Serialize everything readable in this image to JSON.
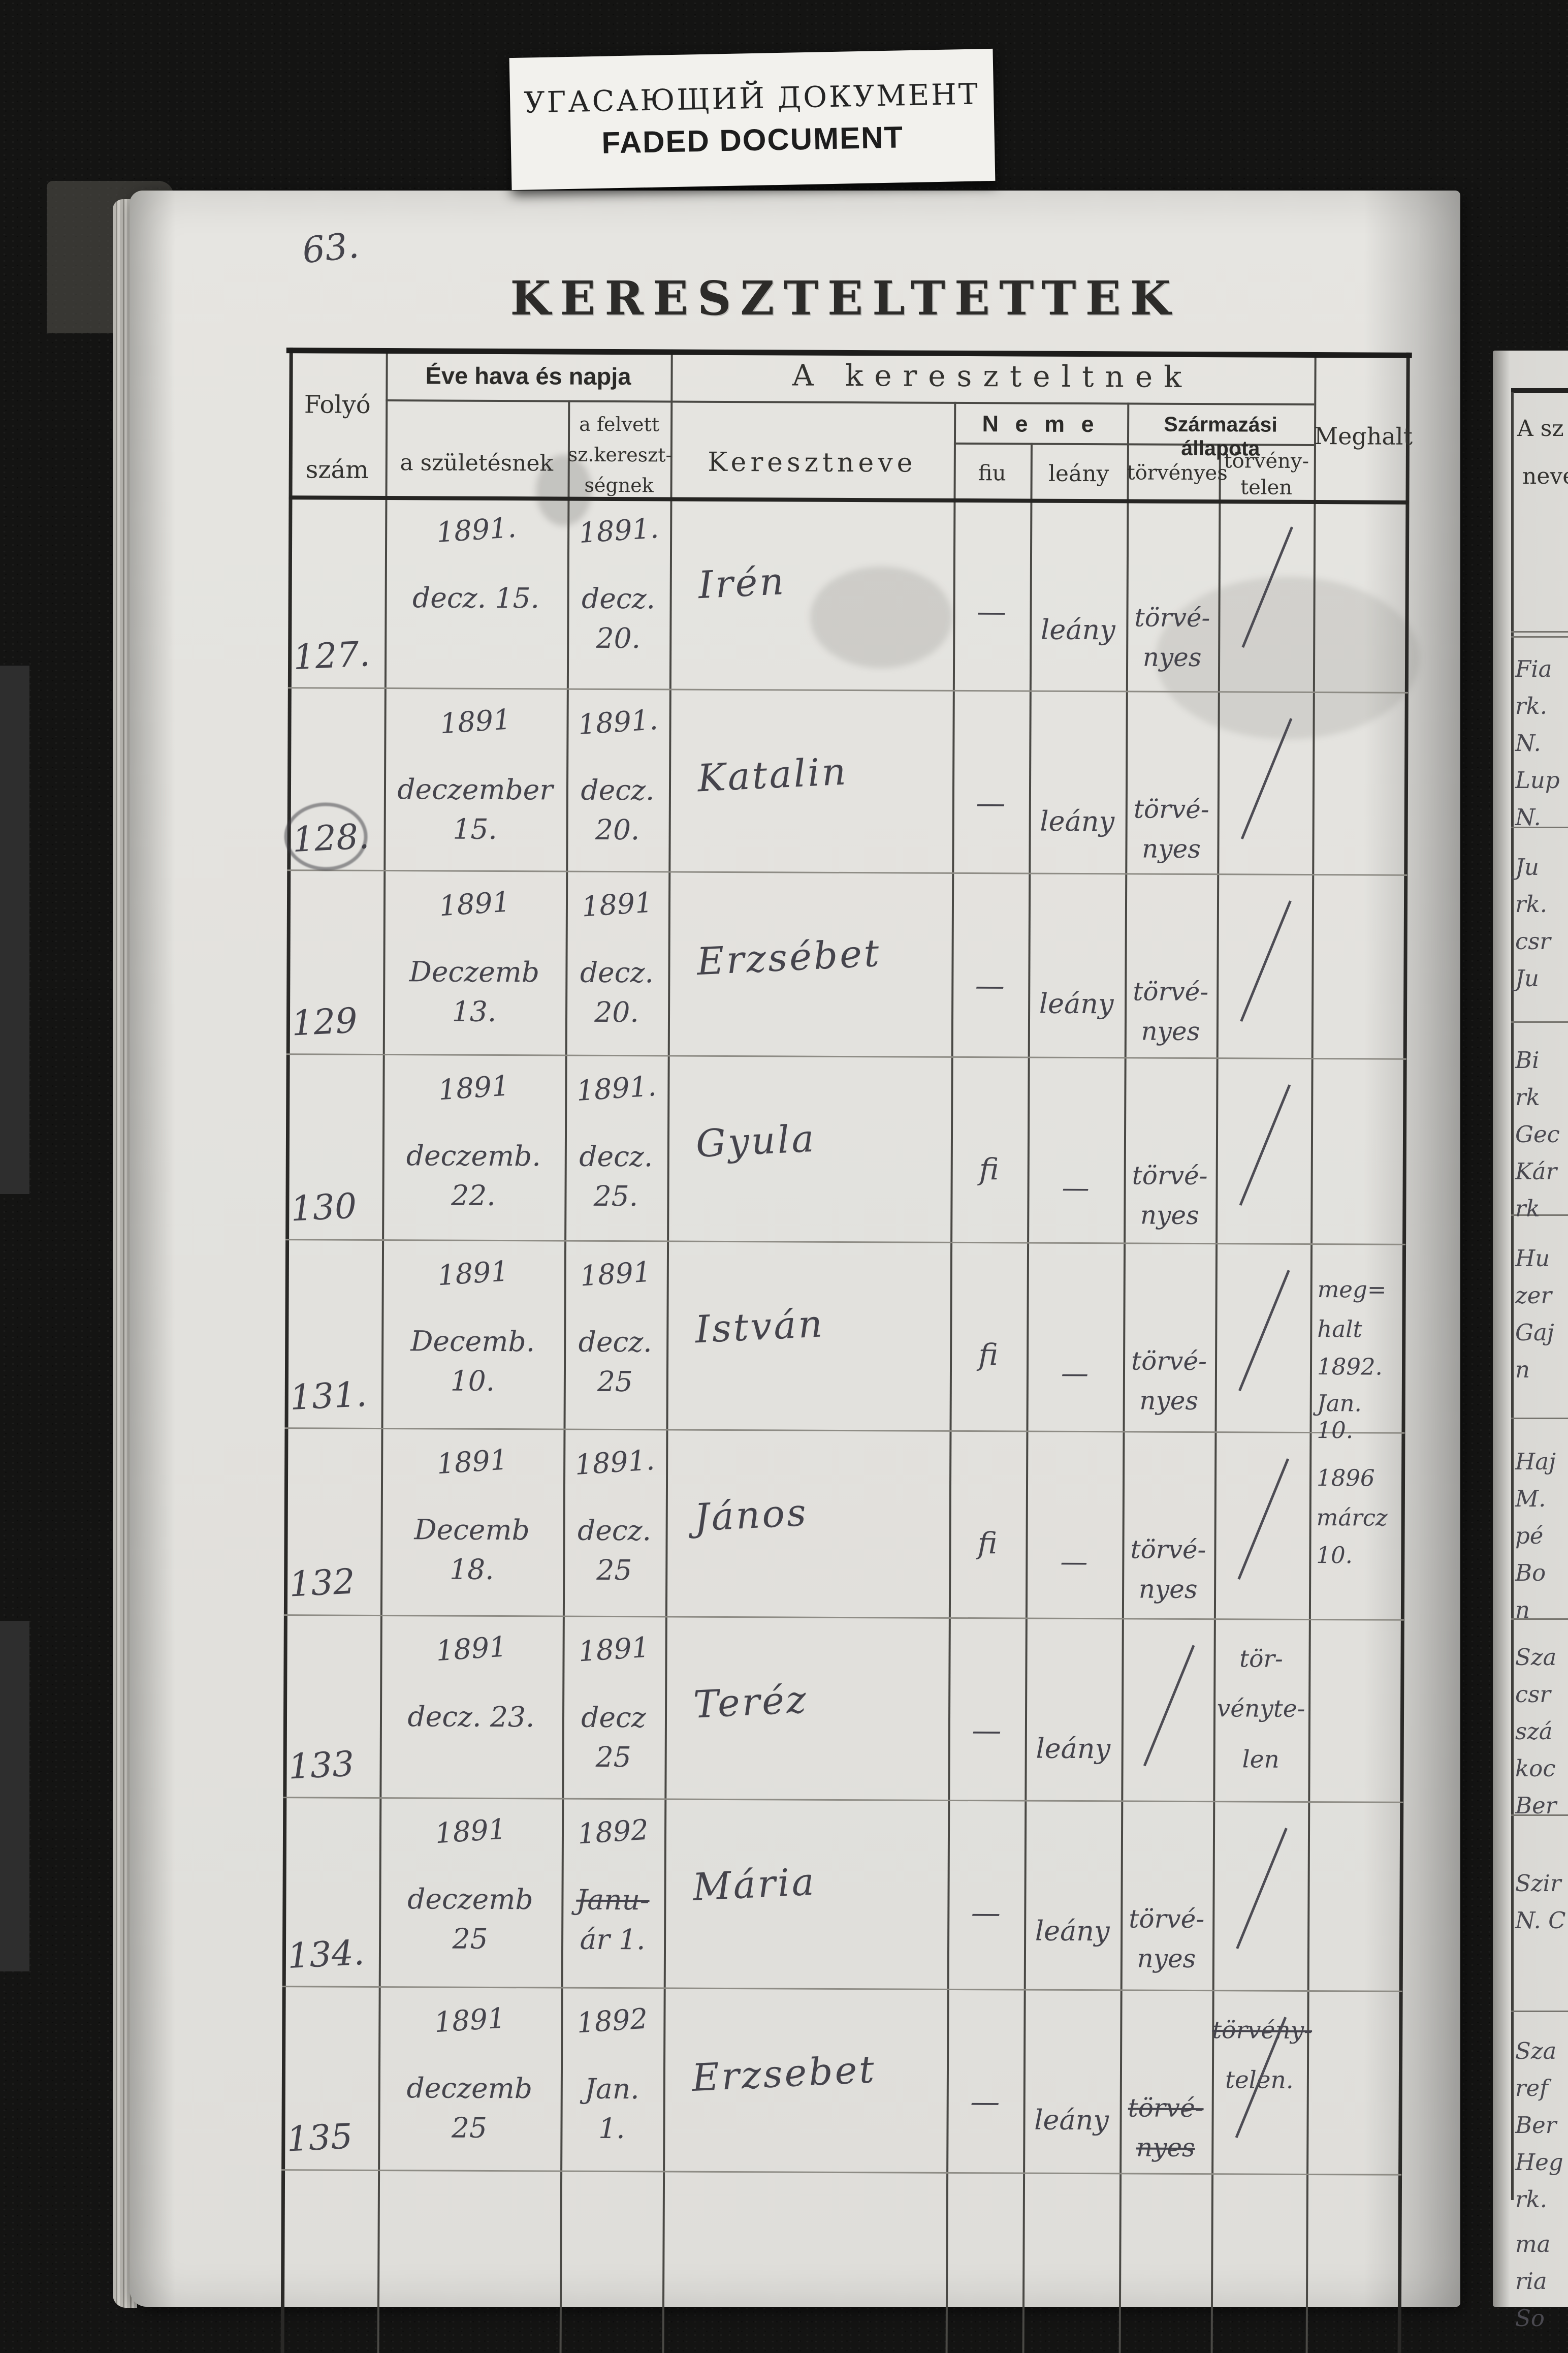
{
  "banner": {
    "line1": "УГАСАЮЩИЙ ДОКУМЕНТ",
    "line2": "FADED DOCUMENT"
  },
  "page": {
    "folio": "63.",
    "title": "KERESZTELTETTEK",
    "header": {
      "folyo_top": "Folyó",
      "folyo_bottom": "szám",
      "eve": "Éve hava és napja",
      "szuletes": "a születésnek",
      "felvett": [
        "a felvett",
        "sz.kereszt-",
        "ségnek"
      ],
      "keresztneve": "Keresztneve",
      "kereszteltnek": "A kereszteltnek",
      "neme": "N e m e",
      "szarmazasi": "Származási állapota",
      "fiu": "fiu",
      "leany": "leány",
      "torvenyes": "törvényes",
      "torvenytelen": [
        "törvény-",
        "telen"
      ],
      "meghalt": "Meghalt"
    },
    "rows": [
      {
        "number": "127.",
        "birth": [
          "1891.",
          "decz. 15.",
          ""
        ],
        "bapt": [
          "1891.",
          "decz.",
          "20."
        ],
        "bapt_struck": false,
        "name": "Irén",
        "fiu": "—",
        "leany": "leány",
        "torvenyes": [
          "törvé-",
          "nyes"
        ],
        "torvenyes_struck": false,
        "torvenyes_slash": false,
        "torvtelen": [
          "",
          "",
          ""
        ],
        "torvtelen_struck": false,
        "torvtelen_slash": true,
        "meghalt": [
          "",
          "",
          "",
          ""
        ]
      },
      {
        "number": "128.",
        "birth": [
          "1891",
          "deczember",
          "15."
        ],
        "bapt": [
          "1891.",
          "decz.",
          "20."
        ],
        "bapt_struck": false,
        "name": "Katalin",
        "fiu": "—",
        "leany": "leány",
        "torvenyes": [
          "törvé-",
          "nyes"
        ],
        "torvenyes_struck": false,
        "torvenyes_slash": false,
        "torvtelen": [
          "",
          "",
          ""
        ],
        "torvtelen_struck": false,
        "torvtelen_slash": true,
        "meghalt": [
          "",
          "",
          "",
          ""
        ]
      },
      {
        "number": "129",
        "birth": [
          "1891",
          "Deczemb",
          "13."
        ],
        "bapt": [
          "1891",
          "decz.",
          "20."
        ],
        "bapt_struck": false,
        "name": "Erzsébet",
        "fiu": "—",
        "leany": "leány",
        "torvenyes": [
          "törvé-",
          "nyes"
        ],
        "torvenyes_struck": false,
        "torvenyes_slash": false,
        "torvtelen": [
          "",
          "",
          ""
        ],
        "torvtelen_struck": false,
        "torvtelen_slash": true,
        "meghalt": [
          "",
          "",
          "",
          ""
        ]
      },
      {
        "number": "130",
        "birth": [
          "1891",
          "deczemb.",
          "22."
        ],
        "bapt": [
          "1891.",
          "decz.",
          "25."
        ],
        "bapt_struck": false,
        "name": "Gyula",
        "fiu": "fi",
        "leany": "—",
        "torvenyes": [
          "törvé-",
          "nyes"
        ],
        "torvenyes_struck": false,
        "torvenyes_slash": false,
        "torvtelen": [
          "",
          "",
          ""
        ],
        "torvtelen_struck": false,
        "torvtelen_slash": true,
        "meghalt": [
          "",
          "",
          "",
          ""
        ]
      },
      {
        "number": "131.",
        "birth": [
          "1891",
          "Decemb.",
          "10."
        ],
        "bapt": [
          "1891",
          "decz.",
          "25"
        ],
        "bapt_struck": false,
        "name": "István",
        "fiu": "fi",
        "leany": "—",
        "torvenyes": [
          "törvé-",
          "nyes"
        ],
        "torvenyes_struck": false,
        "torvenyes_slash": false,
        "torvtelen": [
          "",
          "",
          ""
        ],
        "torvtelen_struck": false,
        "torvtelen_slash": true,
        "meghalt": [
          "meg=",
          "halt",
          "1892.",
          "Jan. 10."
        ]
      },
      {
        "number": "132",
        "birth": [
          "1891",
          "Decemb",
          "18."
        ],
        "bapt": [
          "1891.",
          "decz.",
          "25"
        ],
        "bapt_struck": false,
        "name": "János",
        "fiu": "fi",
        "leany": "—",
        "torvenyes": [
          "törvé-",
          "nyes"
        ],
        "torvenyes_struck": false,
        "torvenyes_slash": false,
        "torvtelen": [
          "",
          "",
          ""
        ],
        "torvtelen_struck": false,
        "torvtelen_slash": true,
        "meghalt": [
          "1896",
          "márcz",
          "10.",
          ""
        ]
      },
      {
        "number": "133",
        "birth": [
          "1891",
          "decz. 23.",
          ""
        ],
        "bapt": [
          "1891",
          "decz",
          "25"
        ],
        "bapt_struck": false,
        "name": "Teréz",
        "fiu": "—",
        "leany": "leány",
        "torvenyes": [
          "",
          ""
        ],
        "torvenyes_struck": false,
        "torvenyes_slash": true,
        "torvtelen": [
          "tör-",
          "vényte-",
          "len"
        ],
        "torvtelen_struck": false,
        "torvtelen_slash": false,
        "meghalt": [
          "",
          "",
          "",
          ""
        ]
      },
      {
        "number": "134.",
        "birth": [
          "1891",
          "deczemb",
          "25"
        ],
        "bapt": [
          "1892",
          "Janu-",
          "ár 1."
        ],
        "bapt_struck": true,
        "name": "Mária",
        "fiu": "—",
        "leany": "leány",
        "torvenyes": [
          "törvé-",
          "nyes"
        ],
        "torvenyes_struck": false,
        "torvenyes_slash": false,
        "torvtelen": [
          "",
          "",
          ""
        ],
        "torvtelen_struck": false,
        "torvtelen_slash": true,
        "meghalt": [
          "",
          "",
          "",
          ""
        ]
      },
      {
        "number": "135",
        "birth": [
          "1891",
          "deczemb",
          "25"
        ],
        "bapt": [
          "1892",
          "Jan.",
          "1."
        ],
        "bapt_struck": false,
        "name": "Erzsebet",
        "fiu": "—",
        "leany": "leány",
        "torvenyes": [
          "törvé-",
          "nyes"
        ],
        "torvenyes_struck": true,
        "torvenyes_slash": false,
        "torvtelen": [
          "törvény-",
          "telen."
        ],
        "torvtelen_struck": true,
        "torvtelen_slash": true,
        "meghalt": [
          "",
          "",
          "",
          ""
        ]
      }
    ]
  },
  "next_page": {
    "header_lines": [
      "A sz",
      "neve"
    ],
    "entries": [
      [
        "Fia",
        "rk.",
        "N.",
        "Lup",
        "N."
      ],
      [
        "Ju",
        "rk.",
        "csr",
        "Ju"
      ],
      [
        "Bi",
        "rk",
        "Gec",
        "Kár",
        "rk"
      ],
      [
        "Hu",
        "zer",
        "Gaj",
        "n"
      ],
      [
        "Haj",
        "M.",
        "pé",
        "Bo",
        "n"
      ],
      [
        "Sza",
        "csr",
        "szá",
        "koc",
        "Ber"
      ],
      [
        "Szir",
        "N. C"
      ],
      [
        "Sza",
        "ref",
        "Ber",
        "Heg",
        "rk."
      ],
      [
        "ma",
        "ria",
        "So"
      ]
    ]
  }
}
